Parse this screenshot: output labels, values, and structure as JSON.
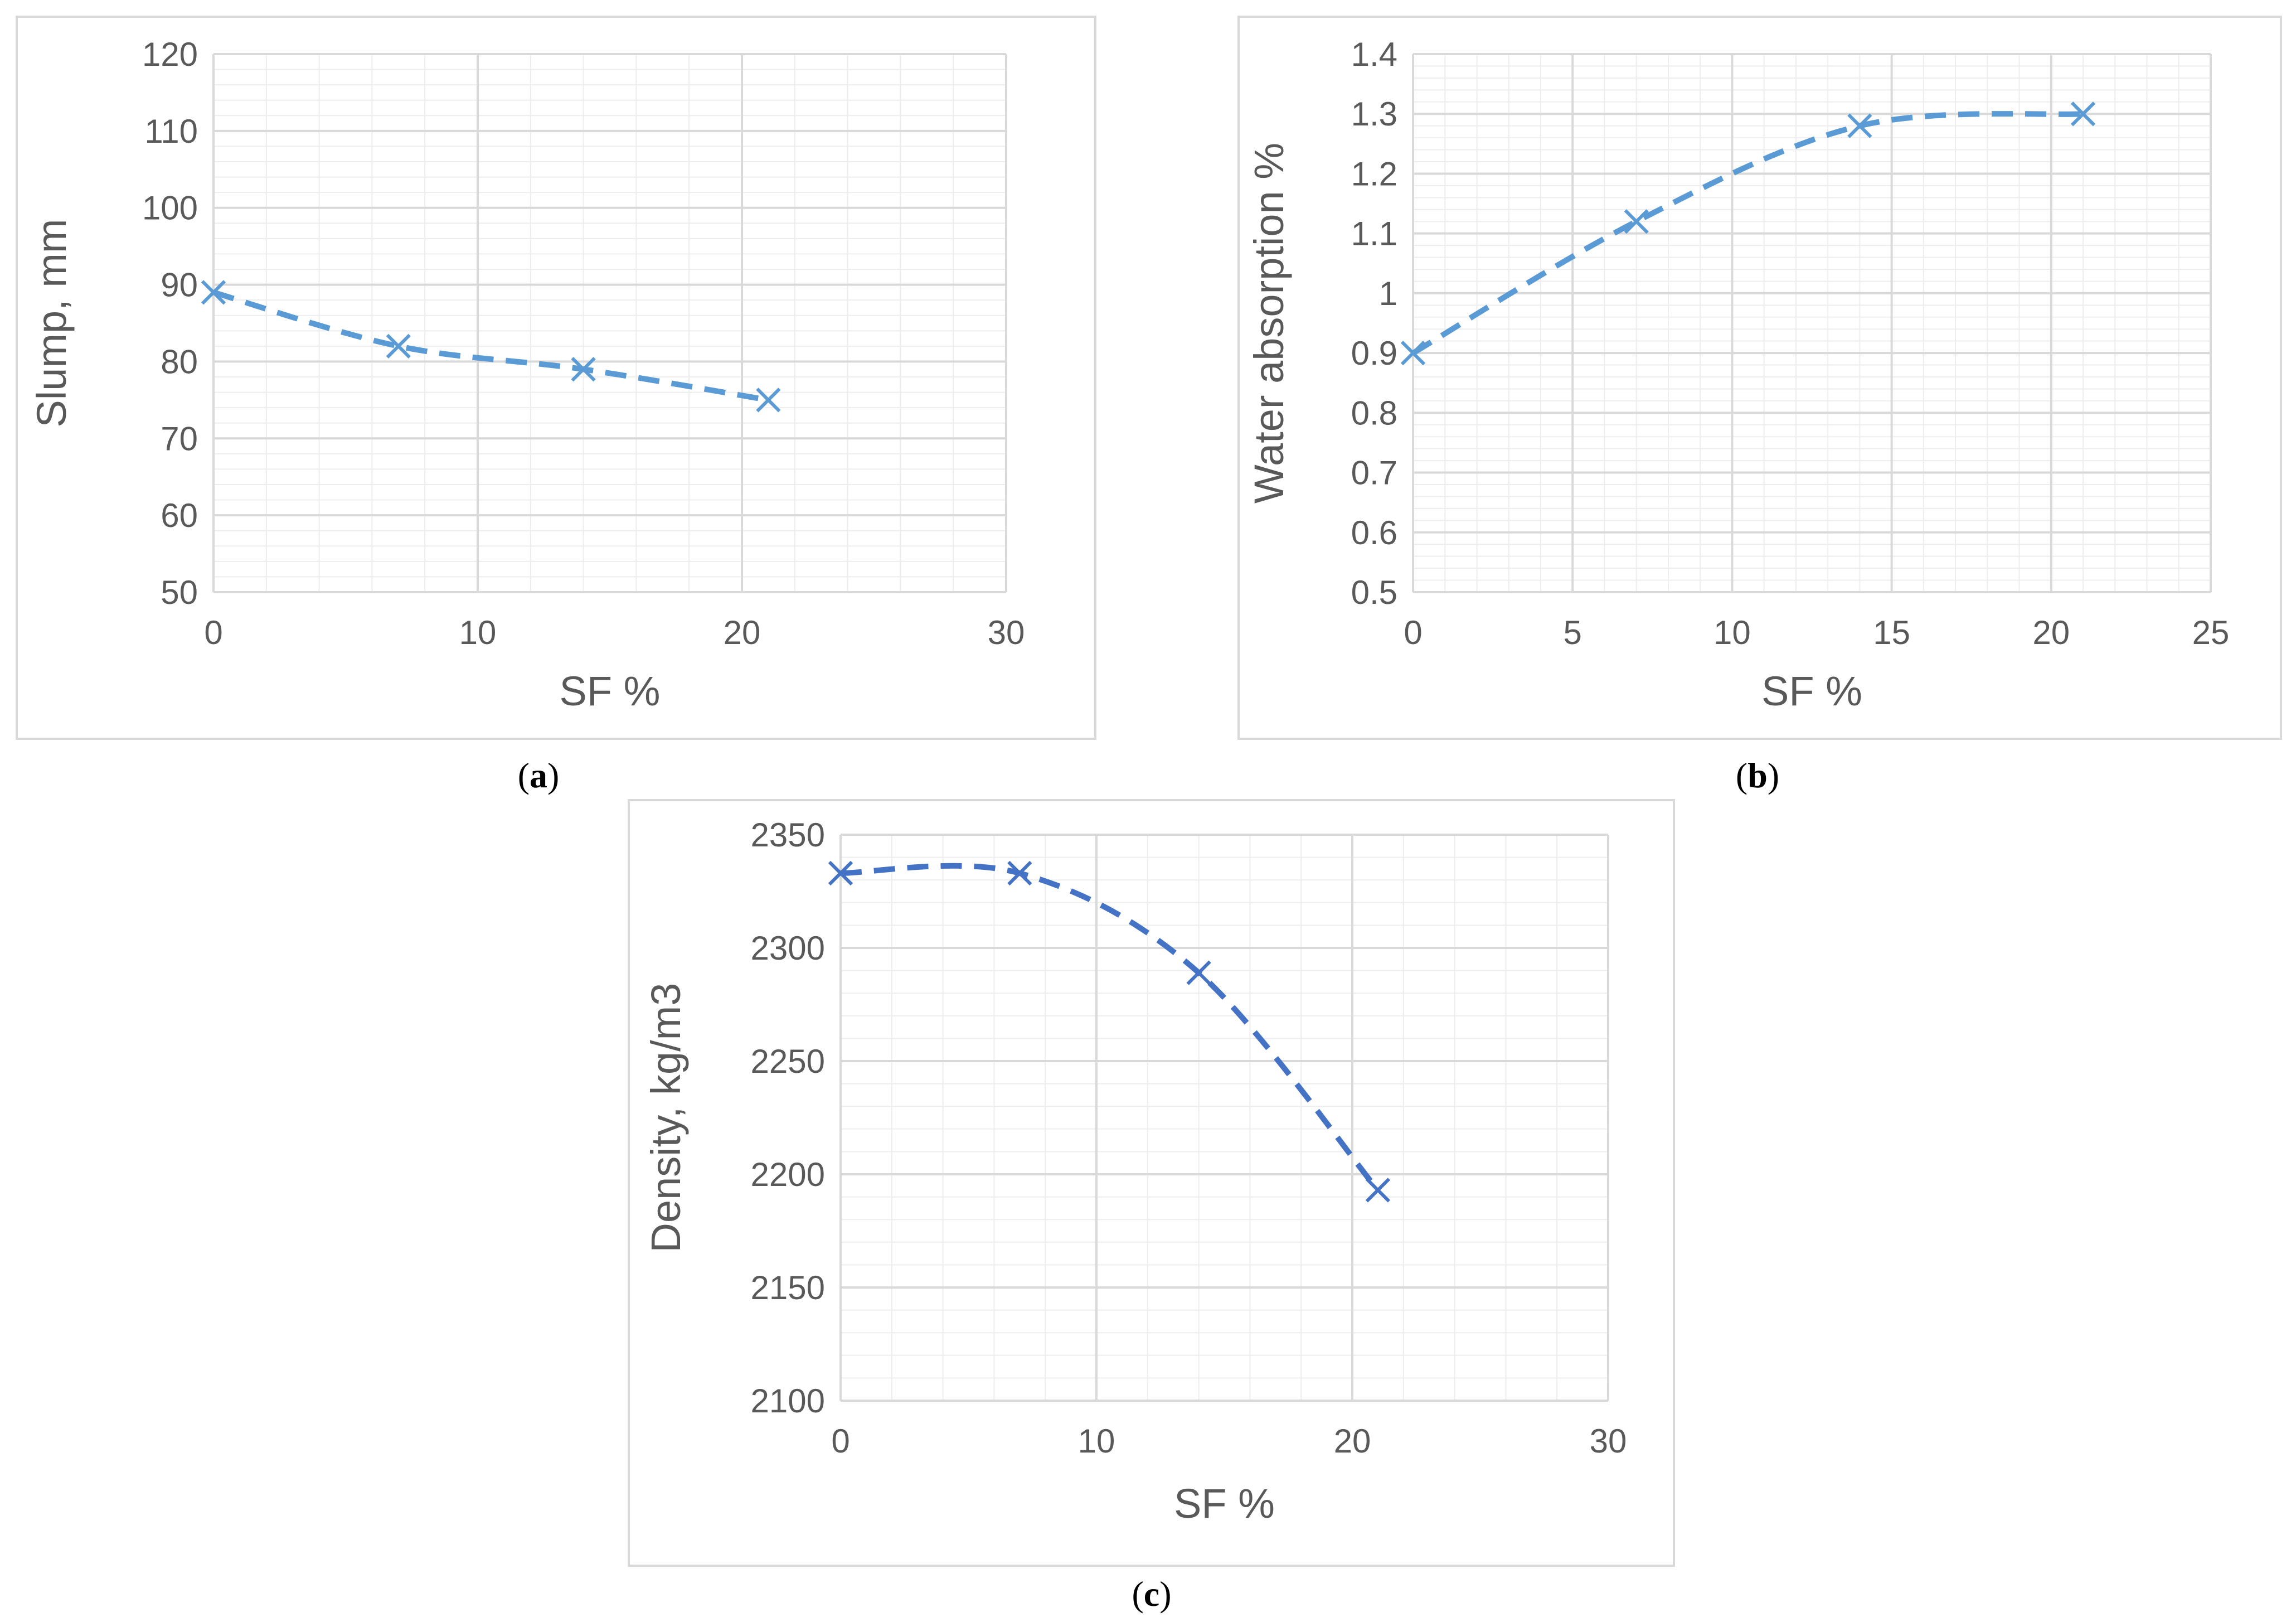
{
  "colors": {
    "series_a": "#5B9BD5",
    "series_b": "#5B9BD5",
    "series_c": "#4472C4",
    "major_grid": "#D9D9D9",
    "minor_grid": "#EDEDED",
    "axis_text": "#595959",
    "frame": "#D9D9D9"
  },
  "panels": [
    {
      "caption_letter": "a"
    },
    {
      "caption_letter": "b"
    },
    {
      "caption_letter": "c"
    }
  ],
  "chart_data": [
    {
      "type": "scatter",
      "title": "",
      "xlabel": "SF %",
      "ylabel": "Slump, mm",
      "xlim": [
        0,
        30
      ],
      "ylim": [
        50,
        120
      ],
      "x_ticks": [
        0,
        10,
        20,
        30
      ],
      "y_ticks": [
        50,
        60,
        70,
        80,
        90,
        100,
        110,
        120
      ],
      "grid": true,
      "minor_grid": true,
      "line_style": "dashed-smooth",
      "marker": "x",
      "legend": "none",
      "series": [
        {
          "x": [
            0,
            7,
            14,
            21
          ],
          "y": [
            89,
            82,
            79,
            75
          ]
        }
      ]
    },
    {
      "type": "scatter",
      "title": "",
      "xlabel": "SF %",
      "ylabel": "Water absorption %",
      "xlim": [
        0,
        25
      ],
      "ylim": [
        0.5,
        1.4
      ],
      "x_ticks": [
        0,
        5,
        10,
        15,
        20,
        25
      ],
      "y_ticks": [
        0.5,
        0.6,
        0.7,
        0.8,
        0.9,
        1,
        1.1,
        1.2,
        1.3,
        1.4
      ],
      "grid": true,
      "minor_grid": true,
      "line_style": "dashed-smooth",
      "marker": "x",
      "legend": "none",
      "series": [
        {
          "x": [
            0,
            7,
            14,
            21
          ],
          "y": [
            0.9,
            1.12,
            1.28,
            1.3
          ]
        }
      ]
    },
    {
      "type": "scatter",
      "title": "",
      "xlabel": "SF %",
      "ylabel": "Density, kg/m3",
      "xlim": [
        0,
        30
      ],
      "ylim": [
        2100,
        2350
      ],
      "x_ticks": [
        0,
        10,
        20,
        30
      ],
      "y_ticks": [
        2100,
        2150,
        2200,
        2250,
        2300,
        2350
      ],
      "grid": true,
      "minor_grid": true,
      "line_style": "dashed-smooth",
      "marker": "x",
      "legend": "none",
      "series": [
        {
          "x": [
            0,
            7,
            14,
            21
          ],
          "y": [
            2333,
            2333,
            2289,
            2193
          ]
        }
      ]
    }
  ]
}
